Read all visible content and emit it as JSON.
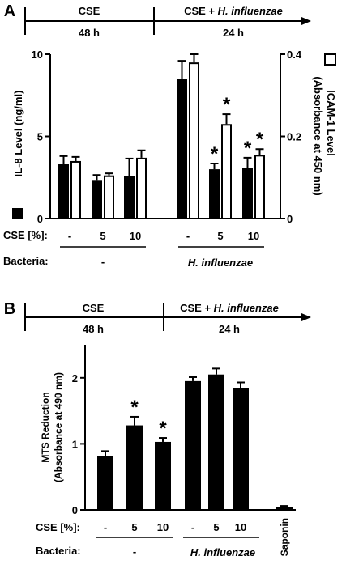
{
  "chart_data": [
    {
      "panel_label": "A",
      "type": "bar",
      "timeline": {
        "phases": [
          {
            "label": "CSE",
            "duration": "48 h"
          },
          {
            "label_prefix": "CSE + ",
            "label_italic": "H. influenzae",
            "duration": "24 h"
          }
        ]
      },
      "ylabel": "IL-8 Level (ng/ml)",
      "ylim": [
        0,
        10
      ],
      "yticks": [
        "0",
        "5",
        "10"
      ],
      "ylabel_right": "ICAM-1 Level",
      "ylabel_right_line2": "(Absorbance at 450 nm)",
      "ylim_right": [
        0,
        0.4
      ],
      "yticks_right": [
        "0",
        "0.2",
        "0.4"
      ],
      "row_labels": {
        "cse": "CSE [%]:",
        "bacteria": "Bacteria:"
      },
      "categories": [
        "-",
        "5",
        "10",
        "-",
        "5",
        "10"
      ],
      "groups": [
        {
          "label": "-",
          "italic": false,
          "count": 3
        },
        {
          "label": "H. influenzae",
          "italic": true,
          "count": 3
        }
      ],
      "series": [
        {
          "axis": "left",
          "style": "filled",
          "values": [
            3.3,
            2.3,
            2.6,
            8.5,
            3.0,
            3.1
          ],
          "errors": [
            0.5,
            0.35,
            1.05,
            1.1,
            0.35,
            0.6
          ],
          "significant": [
            false,
            false,
            false,
            false,
            true,
            true
          ]
        },
        {
          "axis": "right",
          "style": "open",
          "values": [
            0.14,
            0.105,
            0.148,
            0.38,
            0.23,
            0.155
          ],
          "errors": [
            0.01,
            0.005,
            0.018,
            0.02,
            0.024,
            0.014
          ],
          "significant": [
            false,
            false,
            false,
            false,
            true,
            true
          ]
        }
      ],
      "significance_marker": "*"
    },
    {
      "panel_label": "B",
      "type": "bar",
      "timeline": {
        "phases": [
          {
            "label": "CSE",
            "duration": "48 h"
          },
          {
            "label_prefix": "CSE + ",
            "label_italic": "H. influenzae",
            "duration": "24 h"
          }
        ]
      },
      "ylabel": "MTS Reduction",
      "ylabel_line2": "(Absorbance at 490 nm)",
      "ylim": [
        0,
        2.5
      ],
      "yticks": [
        "0",
        "1",
        "2"
      ],
      "row_labels": {
        "cse": "CSE [%]:",
        "bacteria": "Bacteria:"
      },
      "categories": [
        "-",
        "5",
        "10",
        "-",
        "5",
        "10",
        "Saponin"
      ],
      "groups": [
        {
          "label": "-",
          "italic": false,
          "count": 3
        },
        {
          "label": "H. influenzae",
          "italic": true,
          "count": 3
        }
      ],
      "series": [
        {
          "style": "filled",
          "values": [
            0.82,
            1.28,
            1.03,
            1.95,
            2.05,
            1.85,
            0.04
          ],
          "errors": [
            0.07,
            0.13,
            0.06,
            0.06,
            0.09,
            0.08,
            0.02
          ],
          "significant": [
            false,
            true,
            true,
            false,
            false,
            false,
            false
          ]
        }
      ],
      "significance_marker": "*"
    }
  ]
}
